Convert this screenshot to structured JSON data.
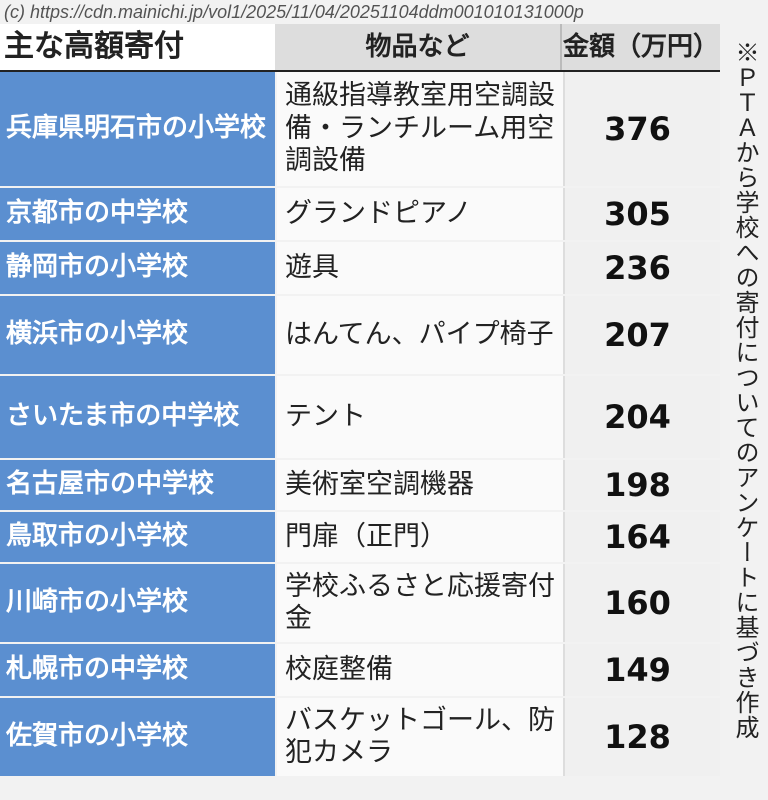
{
  "header": {
    "title": "主な高額寄付",
    "col_item": "物品など",
    "col_amount": "金額（万円）"
  },
  "rows": [
    {
      "place": "兵庫県明石市の小学校",
      "item": "通級指導教室用空調設備・ランチルーム用空調設備",
      "amount": "376"
    },
    {
      "place": "京都市の中学校",
      "item": "グランドピアノ",
      "amount": "305"
    },
    {
      "place": "静岡市の小学校",
      "item": "遊具",
      "amount": "236"
    },
    {
      "place": "横浜市の小学校",
      "item": "はんてん、パイプ椅子",
      "amount": "207"
    },
    {
      "place": "さいたま市の中学校",
      "item": "テント",
      "amount": "204"
    },
    {
      "place": "名古屋市の中学校",
      "item": "美術室空調機器",
      "amount": "198"
    },
    {
      "place": "鳥取市の小学校",
      "item": "門扉（正門）",
      "amount": "164"
    },
    {
      "place": "川崎市の小学校",
      "item": "学校ふるさと応援寄付金",
      "amount": "160"
    },
    {
      "place": "札幌市の中学校",
      "item": "校庭整備",
      "amount": "149"
    },
    {
      "place": "佐賀市の小学校",
      "item": "バスケットゴール、防犯カメラ",
      "amount": "128"
    }
  ],
  "note": "※ＰＴＡから学校への寄付についてのアンケートに基づき作成",
  "watermark": "(c) https://cdn.mainichi.jp/vol1/2025/11/04/20251104ddm001010131000p"
}
